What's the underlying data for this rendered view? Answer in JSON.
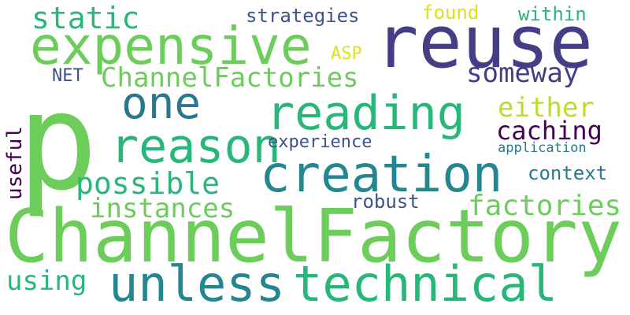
{
  "words": {
    "p": "p",
    "reuse": "reuse",
    "expensive": "expensive",
    "static": "static",
    "strategies": "strategies",
    "found": "found",
    "within": "within",
    "asp": "ASP",
    "net": "NET",
    "channelfactories": "ChannelFactories",
    "someway": "someway",
    "one": "one",
    "reading": "reading",
    "either": "either",
    "reason": "reason",
    "caching": "caching",
    "experience": "experience",
    "application": "application",
    "useful": "useful",
    "creation": "creation",
    "possible": "possible",
    "context": "context",
    "instances": "instances",
    "robust": "robust",
    "factories": "factories",
    "channelfactory": "ChannelFactory",
    "using": "using",
    "unless": "unless",
    "technical": "technical"
  },
  "colors": {
    "green_bright": "#6ccd5a",
    "green_mid": "#29b779",
    "teal": "#24868e",
    "teal_dark": "#2a788e",
    "purple": "#433e85",
    "blue_purple": "#3b528b",
    "yellow_green": "#b8de29",
    "yellow": "#dde318",
    "dark_purple": "#440154"
  }
}
